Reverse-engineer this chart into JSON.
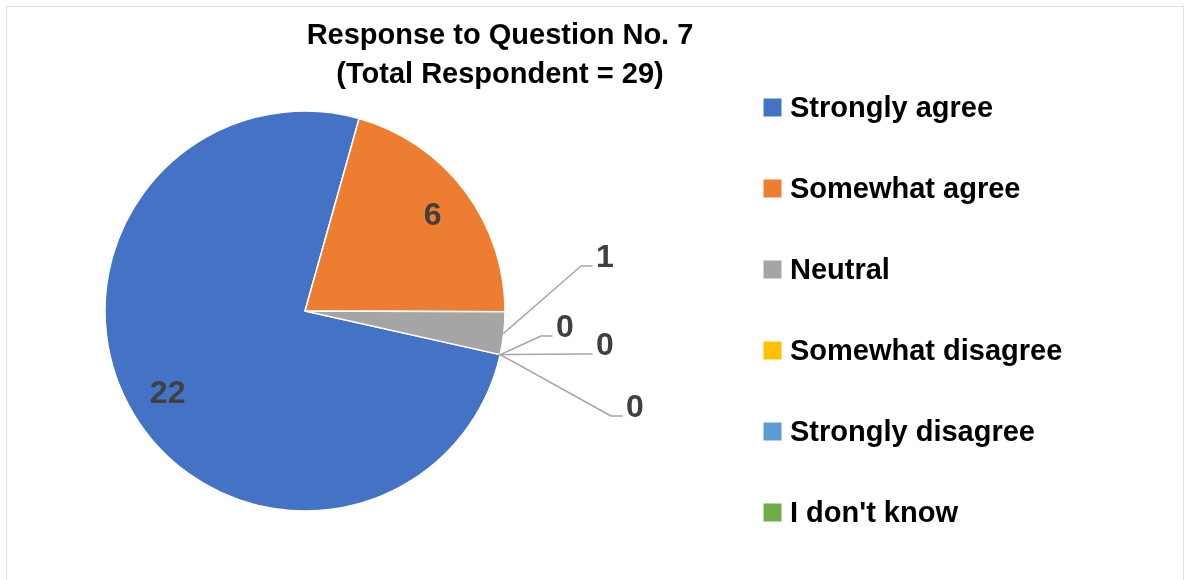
{
  "chart_data": {
    "type": "pie",
    "title": "Response to Question No. 7",
    "subtitle": "(Total Respondent = 29)",
    "categories": [
      "Strongly agree",
      "Somewhat agree",
      "Neutral",
      "Somewhat disagree",
      "Strongly disagree",
      "I don't know"
    ],
    "values": [
      22,
      6,
      1,
      0,
      0,
      0
    ],
    "value_labels": [
      "22",
      "6",
      "1",
      "0",
      "0",
      "0"
    ],
    "colors": [
      "#4472c4",
      "#ed7d31",
      "#a5a5a5",
      "#ffc000",
      "#5b9bd5",
      "#70ad47"
    ],
    "legend": "right"
  }
}
